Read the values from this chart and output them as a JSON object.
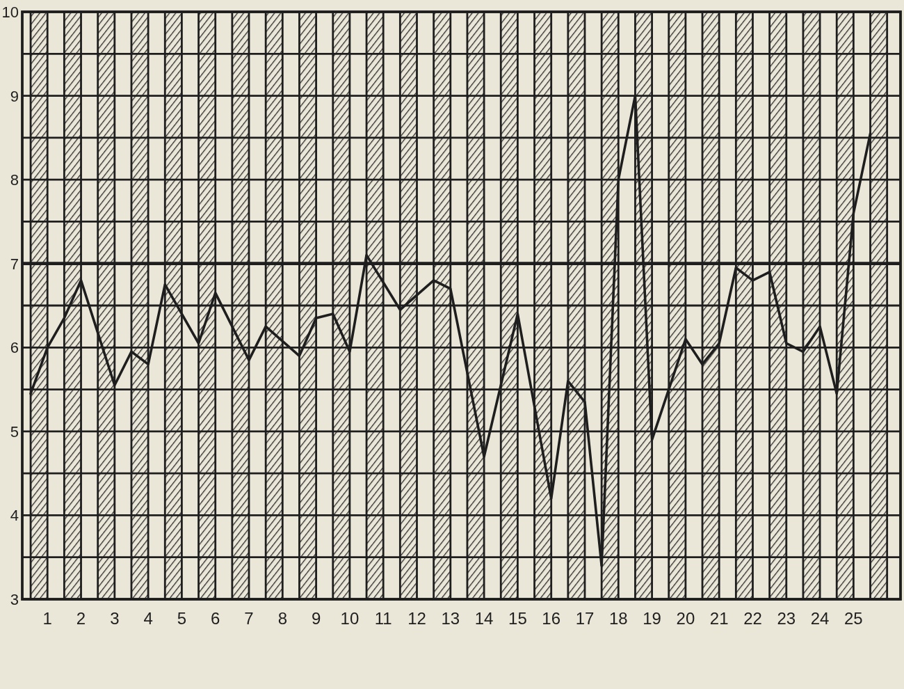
{
  "chart_data": {
    "type": "line",
    "x": [
      0.5,
      1,
      1.5,
      2,
      3,
      3.5,
      4,
      4.5,
      5.5,
      6,
      7,
      7.5,
      8.5,
      9,
      9.5,
      10,
      10.5,
      11.5,
      12.5,
      13,
      14,
      15,
      16,
      16.5,
      17,
      17.5,
      18,
      18.5,
      19,
      20,
      20.5,
      21,
      21.5,
      22,
      22.5,
      23,
      23.5,
      24,
      24.5,
      25,
      25.5
    ],
    "series": [
      {
        "color": "#1e1e1e",
        "values": [
          5.45,
          6.0,
          6.35,
          6.8,
          5.55,
          5.95,
          5.8,
          6.75,
          6.05,
          6.65,
          5.85,
          6.25,
          5.9,
          6.35,
          6.4,
          5.95,
          7.1,
          6.45,
          6.8,
          6.7,
          4.7,
          6.4,
          4.2,
          5.6,
          5.35,
          3.4,
          8.0,
          9.0,
          4.9,
          6.1,
          5.8,
          6.05,
          6.95,
          6.8,
          6.9,
          6.05,
          5.95,
          6.25,
          5.45,
          7.6,
          8.55
        ]
      }
    ],
    "xlim": [
      0.25,
      26.4
    ],
    "xticks": [
      {
        "value": 0.5,
        "label": null
      },
      1,
      {
        "value": 1.5,
        "label": null
      },
      2,
      {
        "value": 2.5,
        "label": null
      },
      3,
      {
        "value": 3.5,
        "label": null
      },
      4,
      {
        "value": 4.5,
        "label": null
      },
      5,
      {
        "value": 5.5,
        "label": null
      },
      6,
      {
        "value": 6.5,
        "label": null
      },
      7,
      {
        "value": 7.5,
        "label": null
      },
      8,
      {
        "value": 8.5,
        "label": null
      },
      9,
      {
        "value": 9.5,
        "label": null
      },
      10,
      {
        "value": 10.5,
        "label": null
      },
      11,
      {
        "value": 11.5,
        "label": null
      },
      12,
      {
        "value": 12.5,
        "label": null
      },
      13,
      {
        "value": 13.5,
        "label": null
      },
      14,
      {
        "value": 14.5,
        "label": null
      },
      15,
      {
        "value": 15.5,
        "label": null
      },
      16,
      {
        "value": 16.5,
        "label": null
      },
      17,
      {
        "value": 17.5,
        "label": null
      },
      18,
      {
        "value": 18.5,
        "label": null
      },
      19,
      {
        "value": 19.5,
        "label": null
      },
      20,
      {
        "value": 20.5,
        "label": null
      },
      21,
      {
        "value": 21.5,
        "label": null
      },
      22,
      {
        "value": 22.5,
        "label": null
      },
      23,
      {
        "value": 23.5,
        "label": null
      },
      24,
      {
        "value": 24.5,
        "label": null
      },
      25,
      {
        "value": 25.5,
        "label": null
      },
      {
        "value": 26,
        "label": null
      }
    ],
    "ylim": [
      3,
      10
    ],
    "yticks": [
      3,
      {
        "value": 3.5,
        "label": null
      },
      4,
      {
        "value": 4.5,
        "label": null
      },
      5,
      {
        "value": 5.5,
        "label": null
      },
      6,
      {
        "value": 6.5,
        "label": null
      },
      7,
      {
        "value": 7.5,
        "label": null
      },
      8,
      {
        "value": 8.5,
        "label": null
      },
      9,
      {
        "value": 9.5,
        "label": null
      },
      10
    ],
    "grid": true,
    "ref_lines": [
      {
        "axis": "y",
        "value": 7,
        "color": "#1e1e1e"
      }
    ],
    "bands": [
      {
        "axis": "x",
        "from": 0.5,
        "to": 1,
        "color": "#2a2a2a"
      },
      {
        "axis": "x",
        "from": 1.5,
        "to": 2,
        "color": "#2a2a2a"
      },
      {
        "axis": "x",
        "from": 2.5,
        "to": 3,
        "color": "#2a2a2a"
      },
      {
        "axis": "x",
        "from": 3.5,
        "to": 4,
        "color": "#2a2a2a"
      },
      {
        "axis": "x",
        "from": 4.5,
        "to": 5,
        "color": "#2a2a2a"
      },
      {
        "axis": "x",
        "from": 5.5,
        "to": 6,
        "color": "#2a2a2a"
      },
      {
        "axis": "x",
        "from": 6.5,
        "to": 7,
        "color": "#2a2a2a"
      },
      {
        "axis": "x",
        "from": 7.5,
        "to": 8,
        "color": "#2a2a2a"
      },
      {
        "axis": "x",
        "from": 8.5,
        "to": 9,
        "color": "#2a2a2a"
      },
      {
        "axis": "x",
        "from": 9.5,
        "to": 10,
        "color": "#2a2a2a"
      },
      {
        "axis": "x",
        "from": 10.5,
        "to": 11,
        "color": "#2a2a2a"
      },
      {
        "axis": "x",
        "from": 11.5,
        "to": 12,
        "color": "#2a2a2a"
      },
      {
        "axis": "x",
        "from": 12.5,
        "to": 13,
        "color": "#2a2a2a"
      },
      {
        "axis": "x",
        "from": 13.5,
        "to": 14,
        "color": "#2a2a2a"
      },
      {
        "axis": "x",
        "from": 14.5,
        "to": 15,
        "color": "#2a2a2a"
      },
      {
        "axis": "x",
        "from": 15.5,
        "to": 16,
        "color": "#2a2a2a"
      },
      {
        "axis": "x",
        "from": 16.5,
        "to": 17,
        "color": "#2a2a2a"
      },
      {
        "axis": "x",
        "from": 17.5,
        "to": 18,
        "color": "#2a2a2a"
      },
      {
        "axis": "x",
        "from": 18.5,
        "to": 19,
        "color": "#2a2a2a"
      },
      {
        "axis": "x",
        "from": 19.5,
        "to": 20,
        "color": "#2a2a2a"
      },
      {
        "axis": "x",
        "from": 20.5,
        "to": 21,
        "color": "#2a2a2a"
      },
      {
        "axis": "x",
        "from": 21.5,
        "to": 22,
        "color": "#2a2a2a"
      },
      {
        "axis": "x",
        "from": 22.5,
        "to": 23,
        "color": "#2a2a2a"
      },
      {
        "axis": "x",
        "from": 23.5,
        "to": 24,
        "color": "#2a2a2a"
      },
      {
        "axis": "x",
        "from": 24.5,
        "to": 25,
        "color": "#2a2a2a"
      },
      {
        "axis": "x",
        "from": 25.5,
        "to": 26,
        "color": "#2a2a2a"
      }
    ]
  }
}
